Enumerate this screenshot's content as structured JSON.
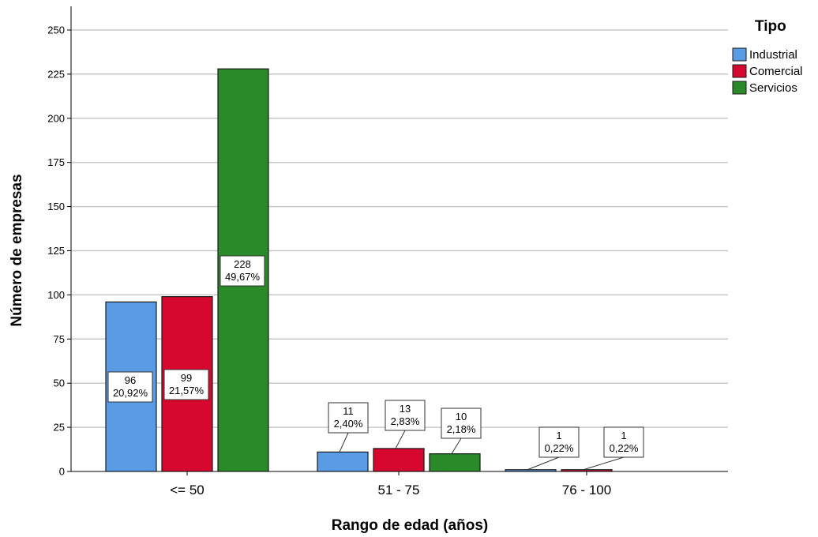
{
  "chart_data": {
    "type": "bar",
    "title": "",
    "xlabel": "Rango de edad (años)",
    "ylabel": "Número de empresas",
    "ylim": [
      0,
      260
    ],
    "yticks": [
      0,
      25,
      50,
      75,
      100,
      125,
      150,
      175,
      200,
      225,
      250
    ],
    "categories": [
      "<= 50",
      "51 - 75",
      "76 - 100"
    ],
    "legend_title": "Tipo",
    "legend_position": "top-right",
    "grid": true,
    "series": [
      {
        "name": "Industrial",
        "color": "#5a9be6",
        "values": [
          96,
          11,
          1
        ],
        "labels": [
          [
            "96",
            "20,92%"
          ],
          [
            "11",
            "2,40%"
          ],
          [
            "1",
            "0,22%"
          ]
        ]
      },
      {
        "name": "Comercial",
        "color": "#d6082f",
        "values": [
          99,
          13,
          1
        ],
        "labels": [
          [
            "99",
            "21,57%"
          ],
          [
            "13",
            "2,83%"
          ],
          [
            "1",
            "0,22%"
          ]
        ]
      },
      {
        "name": "Servicios",
        "color": "#2a8a2a",
        "values": [
          228,
          10,
          0
        ],
        "labels": [
          [
            "228",
            "49,67%"
          ],
          [
            "10",
            "2,18%"
          ],
          null
        ]
      }
    ]
  }
}
